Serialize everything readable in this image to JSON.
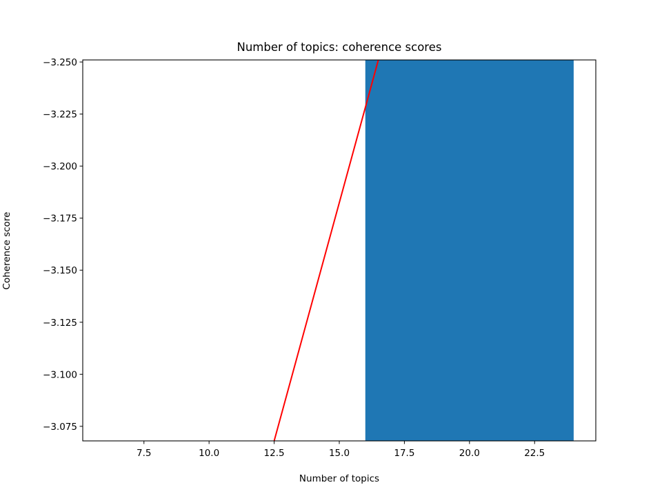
{
  "chart_data": {
    "type": "bar",
    "title": "Number of topics: coherence scores",
    "xlabel": "Number of topics",
    "ylabel": "Coherence score",
    "xlim": [
      5.15,
      24.85
    ],
    "ylim": [
      -3.068,
      -3.251
    ],
    "y_inverted": true,
    "grid": false,
    "x_ticks": [
      7.5,
      10.0,
      12.5,
      15.0,
      17.5,
      20.0,
      22.5
    ],
    "x_tick_labels": [
      "7.5",
      "10.0",
      "12.5",
      "15.0",
      "17.5",
      "20.0",
      "22.5"
    ],
    "y_ticks": [
      -3.25,
      -3.225,
      -3.2,
      -3.175,
      -3.15,
      -3.125,
      -3.1,
      -3.075
    ],
    "y_tick_labels": [
      "−3.250",
      "−3.225",
      "−3.200",
      "−3.175",
      "−3.150",
      "−3.125",
      "−3.100",
      "−3.075"
    ],
    "bars": [
      {
        "x_start": 16.0,
        "x_end": 24.0,
        "y_start": -3.251,
        "y_end": -3.068,
        "color": "#1f77b4"
      }
    ],
    "line": {
      "color": "#ff0000",
      "points": [
        {
          "x": 12.5,
          "y": -3.068
        },
        {
          "x": 16.5,
          "y": -3.251
        }
      ]
    },
    "colors": {
      "bar": "#1f77b4",
      "line": "#ff0000",
      "axes": "#000000"
    }
  }
}
